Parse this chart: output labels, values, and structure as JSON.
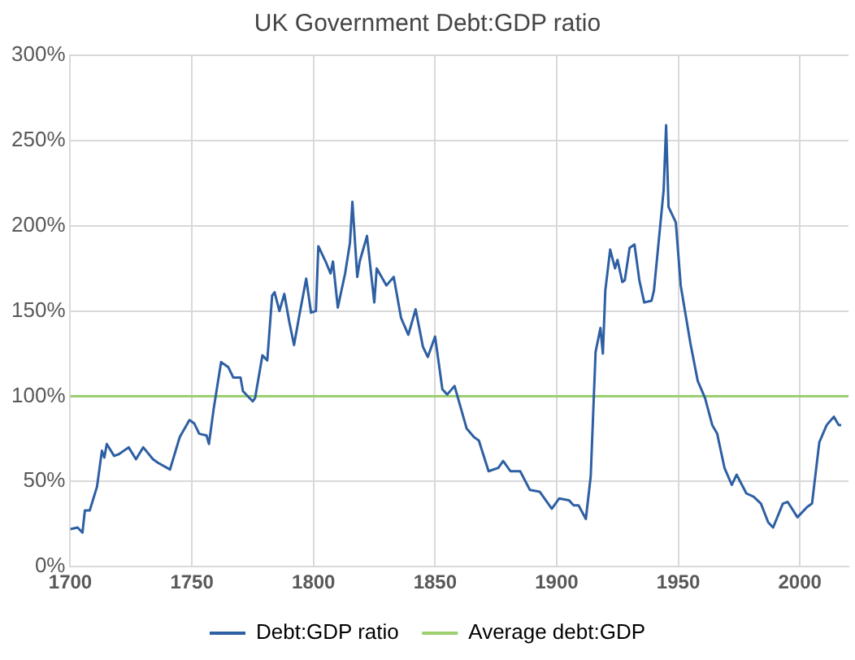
{
  "chart_data": {
    "type": "line",
    "title": "UK Government Debt:GDP ratio",
    "xlim": [
      1700,
      2020
    ],
    "xticks": [
      1700,
      1750,
      1800,
      1850,
      1900,
      1950,
      2000
    ],
    "ylim": [
      0,
      300
    ],
    "yticks": [
      {
        "value": 0,
        "label": "0%"
      },
      {
        "value": 50,
        "label": "50%"
      },
      {
        "value": 100,
        "label": "100%"
      },
      {
        "value": 150,
        "label": "150%"
      },
      {
        "value": 200,
        "label": "200%"
      },
      {
        "value": 250,
        "label": "250%"
      },
      {
        "value": 300,
        "label": "300%"
      }
    ],
    "grid": true,
    "legend": "bottom",
    "marker": "none",
    "line_style": "solid",
    "series": [
      {
        "name": "Debt:GDP ratio",
        "color": "#2e5fa3",
        "x": [
          1700,
          1703,
          1705,
          1706,
          1708,
          1711,
          1713,
          1714,
          1715,
          1718,
          1720,
          1724,
          1727,
          1730,
          1734,
          1736,
          1741,
          1745,
          1749,
          1751,
          1753,
          1756,
          1757,
          1759,
          1762,
          1765,
          1767,
          1770,
          1771,
          1775,
          1776,
          1779,
          1781,
          1783,
          1784,
          1786,
          1788,
          1790,
          1792,
          1794,
          1797,
          1799,
          1801,
          1802,
          1805,
          1807,
          1808,
          1810,
          1813,
          1815,
          1816,
          1818,
          1819,
          1822,
          1825,
          1826,
          1830,
          1833,
          1836,
          1839,
          1842,
          1845,
          1847,
          1850,
          1853,
          1855,
          1858,
          1860,
          1863,
          1866,
          1868,
          1872,
          1876,
          1878,
          1881,
          1885,
          1889,
          1893,
          1898,
          1901,
          1905,
          1907,
          1909,
          1912,
          1914,
          1916,
          1918,
          1919,
          1920,
          1922,
          1924,
          1925,
          1927,
          1928,
          1930,
          1932,
          1934,
          1936,
          1939,
          1940,
          1944,
          1945,
          1946,
          1949,
          1951,
          1955,
          1958,
          1961,
          1964,
          1966,
          1969,
          1972,
          1974,
          1978,
          1981,
          1984,
          1987,
          1989,
          1993,
          1995,
          1999,
          2003,
          2005,
          2008,
          2011,
          2014,
          2016,
          2017
        ],
        "values": [
          22,
          23,
          20,
          33,
          33,
          47,
          68,
          64,
          72,
          65,
          66,
          70,
          63,
          70,
          63,
          61,
          57,
          76,
          86,
          84,
          78,
          77,
          72,
          93,
          120,
          117,
          111,
          111,
          103,
          97,
          99,
          124,
          121,
          159,
          161,
          150,
          160,
          144,
          130,
          146,
          169,
          149,
          150,
          188,
          179,
          172,
          179,
          152,
          172,
          190,
          214,
          170,
          179,
          194,
          155,
          175,
          165,
          170,
          146,
          136,
          151,
          129,
          123,
          135,
          104,
          101,
          106,
          96,
          81,
          76,
          74,
          56,
          58,
          62,
          56,
          56,
          45,
          44,
          34,
          40,
          39,
          36,
          36,
          28,
          53,
          126,
          140,
          125,
          162,
          186,
          175,
          180,
          167,
          168,
          187,
          189,
          168,
          155,
          156,
          162,
          221,
          259,
          211,
          202,
          165,
          131,
          109,
          99,
          83,
          78,
          58,
          48,
          54,
          43,
          41,
          37,
          26,
          23,
          37,
          38,
          29,
          35,
          37,
          73,
          83,
          88,
          83,
          83
        ]
      },
      {
        "name": "Average debt:GDP",
        "color": "#9bcf70",
        "x": [
          1700,
          2020
        ],
        "values": [
          100,
          100
        ]
      }
    ]
  }
}
